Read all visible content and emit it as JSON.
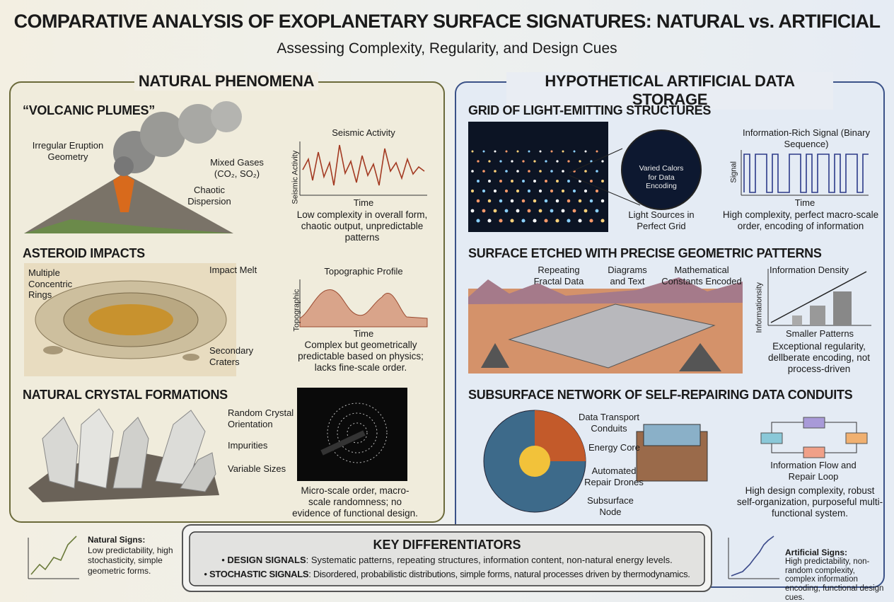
{
  "header": {
    "title": "COMPARATIVE ANALYSIS OF EXOPLANETARY SURFACE SIGNATURES: NATURAL vs. ARTIFICIAL",
    "subtitle": "Assessing Complexity, Regularity, and Design Cues"
  },
  "natural": {
    "heading": "NATURAL PHENOMENA",
    "volcanic": {
      "title": "“VOLCANIC PLUMES”",
      "labels": [
        "Irregular Eruption Geometry",
        "Mixed Gases (CO₂, SO₂)",
        "Chaotic Dispersion"
      ],
      "chart_title": "Seismic Activity",
      "y_label": "Seismic Activity",
      "x_label": "Time",
      "caption": "Low complexity in overall form, chaotic output, unpredictable patterns"
    },
    "asteroid": {
      "title": "ASTEROID IMPACTS",
      "labels": [
        "Multiple Concentric Rings",
        "Impact Melt",
        "Secondary Craters"
      ],
      "chart_title": "Topographic Profile",
      "y_label": "Topographic",
      "x_label": "Time",
      "caption": "Complex but geometrically predictable based on physics; lacks fine-scale order."
    },
    "crystal": {
      "title": "NATURAL CRYSTAL FORMATIONS",
      "labels": [
        "Random Crystal Orientation",
        "Impurities",
        "Variable Sizes"
      ],
      "caption": "Micro-scale order, macro-scale randomness; no evidence of functional design."
    }
  },
  "artificial": {
    "heading": "HYPOTHETICAL ARTIFICIAL DATA STORAGE",
    "grid": {
      "title": "GRID OF LIGHT-EMITTING STRUCTURES",
      "labels": [
        "Varied Calors for Data Encoding",
        "Light Sources in Perfect Grid"
      ],
      "chart_title": "Information-Rich Signal (Binary Sequence)",
      "y_label": "Signal",
      "x_label": "Time",
      "caption": "High complexity, perfect macro-scale order, encoding of information"
    },
    "etched": {
      "title": "SURFACE ETCHED WITH PRECISE GEOMETRIC PATTERNS",
      "labels": [
        "Repeating Fractal Data",
        "Diagrams and Text",
        "Mathematical Constants Encoded"
      ],
      "chart_title": "Information Density",
      "y_label": "Informationsity",
      "x_label": "Smaller Patterns",
      "caption": "Exceptional regularity, dellberate encoding, not process-driven"
    },
    "conduits": {
      "title": "SUBSURFACE NETWORK OF SELF-REPAIRING DATA CONDUITS",
      "labels": [
        "Data Transport Conduits",
        "Energy Core",
        "Automated Repair Drones",
        "Subsurface Node"
      ],
      "chart_title": "Information Flow and Repair Loop",
      "caption": "High design complexity, robust self-organization, purposeful multi-functional system."
    }
  },
  "footer": {
    "natural_signs": {
      "title": "Natural Signs:",
      "text": "Low predictability, high stochasticity, simple geometric forms."
    },
    "key": {
      "title": "KEY DIFFERENTIATORS",
      "items": [
        {
          "label": "DESIGN SIGNALS",
          "text": ": Systematic patterns, repeating structures, information content, non-natural energy levels."
        },
        {
          "label": "STOCHASTIC SIGNALS",
          "text": ": Disordered, probabilistic distributions, simple forms, natural processes driven by thermodynamics."
        }
      ]
    },
    "artificial_signs": {
      "title": "Artificial Signs:",
      "text": "High predictability, non-random complexity, complex information encoding, functional design cues."
    }
  }
}
